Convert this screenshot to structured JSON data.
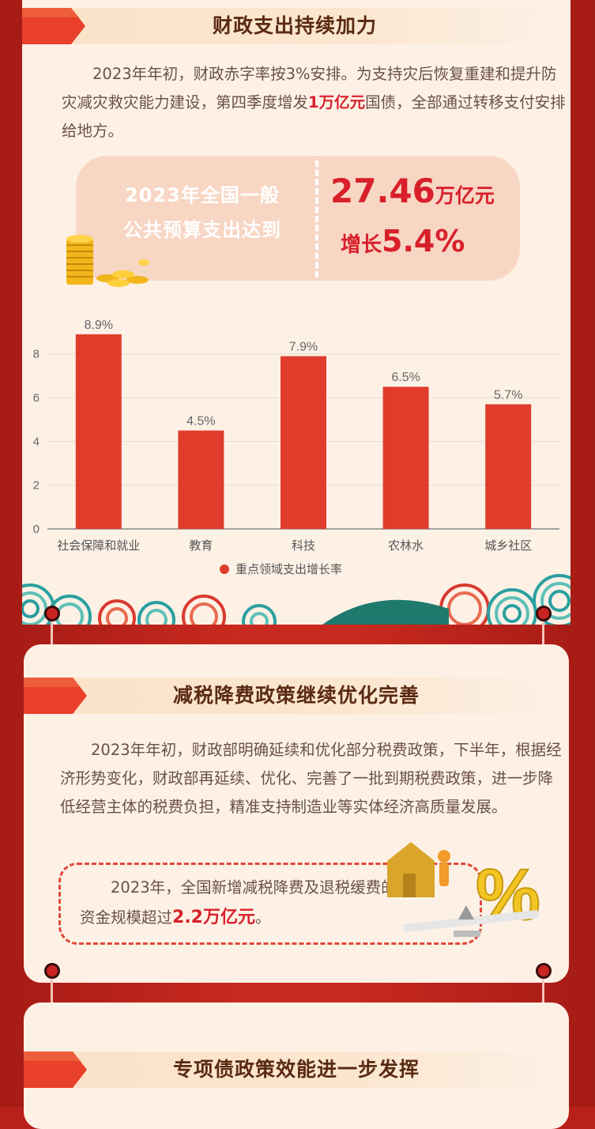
{
  "section1": {
    "title": "财政支出持续加力",
    "paragraph_before": "2023年年初，财政赤字率按3%安排。为支持灾后恢复重建和提升防灾减灾救灾能力建设，第四季度增发",
    "paragraph_highlight": "1万亿元",
    "paragraph_after": "国债，全部通过转移支付安排给地方。",
    "stat_label_line1": "2023年全国一般",
    "stat_label_line2": "公共预算支出达到",
    "stat_value": "27.46",
    "stat_unit": "万亿元",
    "growth_prefix": "增长",
    "growth_value": "5.4%"
  },
  "chart_data": {
    "type": "bar",
    "categories": [
      "社会保障和就业",
      "教育",
      "科技",
      "农林水",
      "城乡社区"
    ],
    "series": [
      {
        "name": "重点领域支出增长率",
        "values": [
          8.9,
          4.5,
          7.9,
          6.5,
          5.7
        ]
      }
    ],
    "data_labels": [
      "8.9%",
      "4.5%",
      "7.9%",
      "6.5%",
      "5.7%"
    ],
    "yticks": [
      0,
      2,
      4,
      6,
      8
    ],
    "ylim": [
      0,
      9.4
    ],
    "grid": true,
    "legend_position": "bottom",
    "bar_color": "#e03c2c"
  },
  "section2": {
    "title": "减税降费政策继续优化完善",
    "paragraph": "2023年年初，财政部明确延续和优化部分税费政策，下半年，根据经济形势变化，财政部再延续、优化、完善了一批到期税费政策，进一步降低经营主体的税费负担，精准支持制造业等实体经济高质量发展。",
    "box_before": "2023年，全国新增减税降费及退税缓费的资金规模超过",
    "box_highlight": "2.2万亿元",
    "box_after": "。"
  },
  "section3": {
    "title": "专项债政策效能进一步发挥"
  },
  "colors": {
    "background": "#b8201a",
    "card": "#fdf1e6",
    "accent": "#d8202b",
    "title_text": "#5a2a12",
    "body_text": "#6a5048"
  }
}
